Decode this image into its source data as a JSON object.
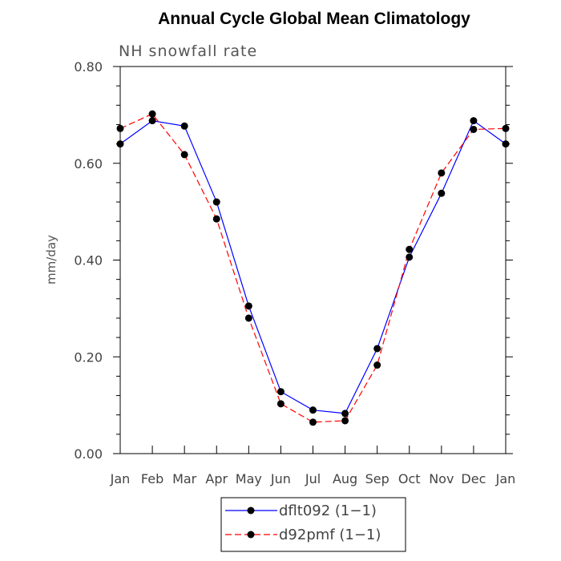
{
  "chart_data": {
    "type": "line",
    "title": "Annual Cycle Global Mean Climatology",
    "subtitle": "NH snowfall rate",
    "xlabel": "",
    "ylabel": "mm/day",
    "categories": [
      "Jan",
      "Feb",
      "Mar",
      "Apr",
      "May",
      "Jun",
      "Jul",
      "Aug",
      "Sep",
      "Oct",
      "Nov",
      "Dec",
      "Jan"
    ],
    "ylim": [
      0,
      0.8
    ],
    "yticks": [
      "0.00",
      "0.20",
      "0.40",
      "0.60",
      "0.80"
    ],
    "grid": false,
    "legend_position": "bottom",
    "series": [
      {
        "name": "dflt092 (1−1)",
        "color": "#0000ff",
        "line_style": "solid",
        "values": [
          0.64,
          0.688,
          0.677,
          0.52,
          0.305,
          0.128,
          0.09,
          0.083,
          0.217,
          0.406,
          0.538,
          0.688,
          0.64
        ]
      },
      {
        "name": "d92pmf (1−1)",
        "color": "#ff0000",
        "line_style": "dashed",
        "values": [
          0.672,
          0.702,
          0.618,
          0.485,
          0.28,
          0.103,
          0.065,
          0.068,
          0.183,
          0.422,
          0.58,
          0.67,
          0.672
        ]
      }
    ]
  }
}
